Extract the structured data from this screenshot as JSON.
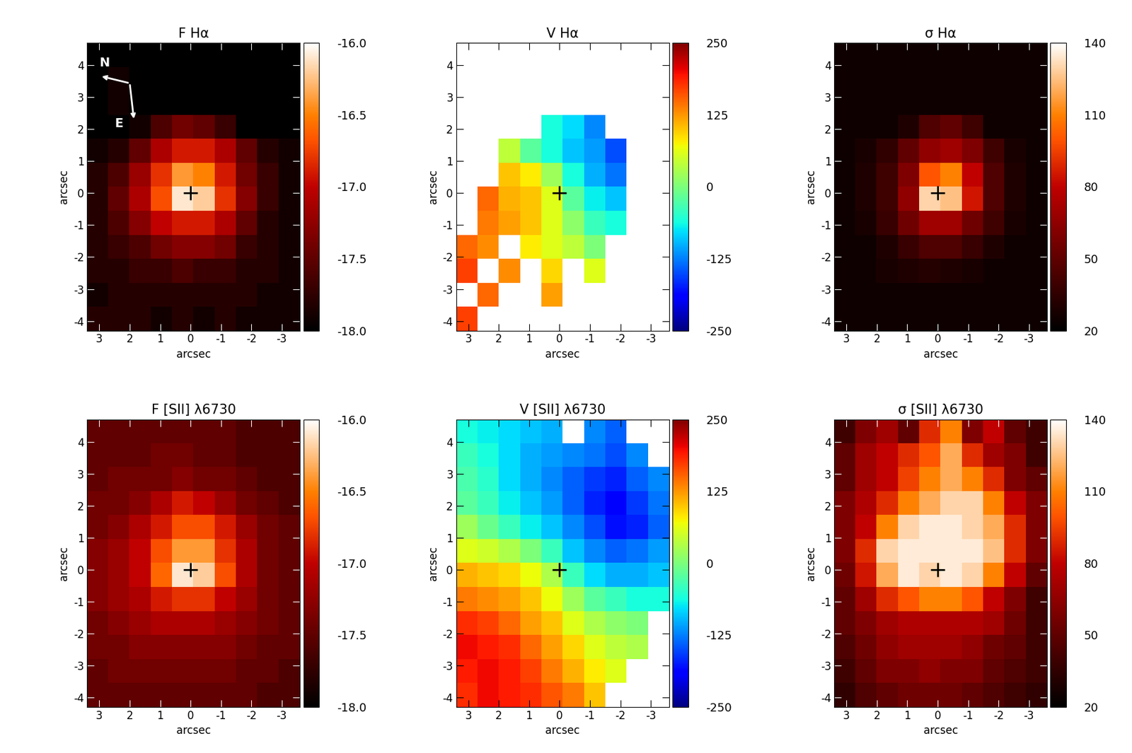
{
  "chart_data": [
    {
      "type": "heatmap",
      "title": "F Hα",
      "xlabel": "arcsec",
      "ylabel": "arcsec",
      "xlim": [
        3.4,
        -3.6
      ],
      "ylim": [
        -4.3,
        4.7
      ],
      "xticks": [
        3,
        2,
        1,
        0,
        -1,
        -2,
        -3
      ],
      "yticks": [
        -4,
        -3,
        -2,
        -1,
        0,
        1,
        2,
        3,
        4
      ],
      "color": "gist_heat",
      "marker": "+",
      "center": [
        0,
        0
      ],
      "annotations": [
        "N",
        "E"
      ],
      "colorbar": {
        "range": [
          -18.0,
          -16.0
        ],
        "ticks": [
          {
            "value": -18.0,
            "label": "-18.0"
          },
          -17.5,
          {
            "value": -17.0,
            "label": "-17.0"
          },
          -16.5,
          {
            "value": -16.0,
            "label": "-16.0"
          }
        ]
      },
      "cells": [
        [
          -18,
          -18,
          -18,
          -18,
          -18,
          -18,
          -18,
          -18,
          -18,
          -18
        ],
        [
          -18,
          -17.9,
          -18,
          -18,
          -18,
          -18,
          -18,
          -18,
          -18,
          -18
        ],
        [
          -18,
          -17.9,
          -18,
          -18,
          -18,
          -18,
          -18,
          -18,
          -18,
          -18
        ],
        [
          -18,
          -18,
          -17.9,
          -17.6,
          -17.4,
          -17.5,
          -17.7,
          -18,
          -18,
          -18
        ],
        [
          -17.9,
          -17.8,
          -17.5,
          -17.1,
          -16.9,
          -16.9,
          -17.1,
          -17.5,
          -17.8,
          -17.9
        ],
        [
          -17.8,
          -17.6,
          -17.2,
          -16.8,
          -16.4,
          -16.5,
          -16.9,
          -17.4,
          -17.7,
          -17.9
        ],
        [
          -17.8,
          -17.5,
          -17.1,
          -16.7,
          -16.1,
          -16.2,
          -16.8,
          -17.3,
          -17.7,
          -17.9
        ],
        [
          -17.8,
          -17.6,
          -17.3,
          -17.0,
          -16.9,
          -16.9,
          -17.1,
          -17.5,
          -17.8,
          -17.9
        ],
        [
          -17.8,
          -17.7,
          -17.6,
          -17.4,
          -17.3,
          -17.3,
          -17.4,
          -17.7,
          -17.8,
          -17.9
        ],
        [
          -17.8,
          -17.8,
          -17.7,
          -17.7,
          -17.6,
          -17.7,
          -17.7,
          -17.8,
          -17.8,
          -17.9
        ],
        [
          -17.9,
          -17.8,
          -17.8,
          -17.8,
          -17.8,
          -17.8,
          -17.8,
          -17.8,
          -17.9,
          -17.9
        ],
        [
          -17.8,
          -17.8,
          -17.8,
          -17.9,
          -17.8,
          -17.9,
          -17.8,
          -17.9,
          -17.9,
          -17.9
        ]
      ]
    },
    {
      "type": "heatmap",
      "title": "V Hα",
      "xlabel": "arcsec",
      "ylabel": "arcsec",
      "xlim": [
        3.4,
        -3.6
      ],
      "ylim": [
        -4.3,
        4.7
      ],
      "xticks": [
        3,
        2,
        1,
        0,
        -1,
        -2,
        -3
      ],
      "yticks": [
        -4,
        -3,
        -2,
        -1,
        0,
        1,
        2,
        3,
        4
      ],
      "color": "jet",
      "marker": "+",
      "center": [
        0,
        0
      ],
      "colorbar": {
        "range": [
          -250,
          250
        ],
        "ticks": [
          -250,
          -125,
          0,
          125,
          250
        ]
      },
      "cells": [
        [
          null,
          null,
          null,
          null,
          null,
          null,
          null,
          null,
          null,
          null
        ],
        [
          null,
          null,
          null,
          null,
          null,
          null,
          null,
          null,
          null,
          null
        ],
        [
          null,
          null,
          null,
          null,
          null,
          null,
          null,
          null,
          null,
          null
        ],
        [
          null,
          null,
          null,
          null,
          -60,
          -80,
          -120,
          null,
          null,
          null
        ],
        [
          null,
          null,
          40,
          -20,
          -60,
          -90,
          -110,
          -150,
          null,
          null
        ],
        [
          null,
          null,
          100,
          80,
          20,
          -60,
          -100,
          -130,
          null,
          null
        ],
        [
          null,
          150,
          110,
          100,
          60,
          -20,
          -70,
          -90,
          null,
          null
        ],
        [
          null,
          140,
          120,
          100,
          60,
          10,
          -40,
          -60,
          null,
          null
        ],
        [
          150,
          130,
          null,
          80,
          60,
          40,
          0,
          null,
          null,
          null
        ],
        [
          170,
          null,
          130,
          null,
          90,
          null,
          60,
          null,
          null,
          null
        ],
        [
          null,
          150,
          null,
          null,
          120,
          null,
          null,
          null,
          null,
          null
        ],
        [
          170,
          null,
          null,
          null,
          null,
          null,
          null,
          null,
          null,
          null
        ]
      ]
    },
    {
      "type": "heatmap",
      "title": "σ Hα",
      "xlabel": "arcsec",
      "ylabel": "arcsec",
      "xlim": [
        3.4,
        -3.6
      ],
      "ylim": [
        -4.3,
        4.7
      ],
      "xticks": [
        3,
        2,
        1,
        0,
        -1,
        -2,
        -3
      ],
      "yticks": [
        -4,
        -3,
        -2,
        -1,
        0,
        1,
        2,
        3,
        4
      ],
      "color": "gist_heat",
      "marker": "+",
      "center": [
        0,
        0
      ],
      "colorbar": {
        "range": [
          20,
          140
        ],
        "ticks": [
          20,
          50,
          80,
          110,
          140
        ]
      },
      "cells": [
        [
          25,
          25,
          25,
          25,
          25,
          25,
          25,
          25,
          25,
          25
        ],
        [
          25,
          25,
          25,
          25,
          25,
          25,
          25,
          25,
          25,
          25
        ],
        [
          25,
          25,
          25,
          25,
          25,
          25,
          25,
          25,
          25,
          25
        ],
        [
          25,
          25,
          25,
          30,
          45,
          50,
          40,
          25,
          25,
          25
        ],
        [
          25,
          28,
          35,
          50,
          65,
          70,
          60,
          40,
          28,
          25
        ],
        [
          25,
          30,
          40,
          60,
          100,
          110,
          80,
          45,
          30,
          25
        ],
        [
          25,
          30,
          40,
          65,
          130,
          125,
          85,
          45,
          30,
          25
        ],
        [
          25,
          28,
          38,
          55,
          70,
          70,
          55,
          40,
          28,
          25
        ],
        [
          25,
          25,
          30,
          38,
          45,
          45,
          38,
          30,
          25,
          25
        ],
        [
          25,
          25,
          28,
          30,
          32,
          30,
          28,
          25,
          25,
          25
        ],
        [
          25,
          25,
          25,
          25,
          25,
          25,
          25,
          25,
          25,
          25
        ],
        [
          25,
          25,
          25,
          25,
          25,
          25,
          25,
          25,
          25,
          25
        ]
      ]
    },
    {
      "type": "heatmap",
      "title": "F [SII] λ6730",
      "xlabel": "arcsec",
      "ylabel": "arcsec",
      "xlim": [
        3.4,
        -3.6
      ],
      "ylim": [
        -4.3,
        4.7
      ],
      "xticks": [
        3,
        2,
        1,
        0,
        -1,
        -2,
        -3
      ],
      "yticks": [
        -4,
        -3,
        -2,
        -1,
        0,
        1,
        2,
        3,
        4
      ],
      "color": "gist_heat",
      "marker": "+",
      "center": [
        0,
        0
      ],
      "colorbar": {
        "range": [
          -18.0,
          -16.0
        ],
        "ticks": [
          {
            "value": -18.0,
            "label": "-18.0"
          },
          -17.5,
          {
            "value": -17.0,
            "label": "-17.0"
          },
          -16.5,
          {
            "value": -16.0,
            "label": "-16.0"
          }
        ]
      },
      "cells": [
        [
          -17.5,
          -17.5,
          -17.5,
          -17.5,
          -17.5,
          -17.5,
          -17.5,
          -17.6,
          -17.6,
          -17.6
        ],
        [
          -17.5,
          -17.5,
          -17.5,
          -17.4,
          -17.4,
          -17.5,
          -17.5,
          -17.6,
          -17.6,
          -17.6
        ],
        [
          -17.5,
          -17.4,
          -17.4,
          -17.4,
          -17.3,
          -17.4,
          -17.4,
          -17.5,
          -17.6,
          -17.6
        ],
        [
          -17.4,
          -17.4,
          -17.3,
          -17.1,
          -16.9,
          -17.0,
          -17.2,
          -17.4,
          -17.5,
          -17.6
        ],
        [
          -17.4,
          -17.3,
          -17.1,
          -16.9,
          -16.7,
          -16.7,
          -16.9,
          -17.2,
          -17.4,
          -17.5
        ],
        [
          -17.3,
          -17.2,
          -17.0,
          -16.7,
          -16.4,
          -16.4,
          -16.8,
          -17.1,
          -17.4,
          -17.5
        ],
        [
          -17.3,
          -17.2,
          -17.0,
          -16.6,
          -16.1,
          -16.2,
          -16.7,
          -17.1,
          -17.4,
          -17.5
        ],
        [
          -17.3,
          -17.2,
          -17.1,
          -16.9,
          -16.8,
          -16.8,
          -17.0,
          -17.2,
          -17.4,
          -17.5
        ],
        [
          -17.4,
          -17.3,
          -17.2,
          -17.1,
          -17.1,
          -17.1,
          -17.2,
          -17.3,
          -17.4,
          -17.5
        ],
        [
          -17.4,
          -17.4,
          -17.3,
          -17.3,
          -17.3,
          -17.3,
          -17.3,
          -17.4,
          -17.5,
          -17.5
        ],
        [
          -17.5,
          -17.4,
          -17.4,
          -17.4,
          -17.4,
          -17.4,
          -17.4,
          -17.5,
          -17.5,
          -17.6
        ],
        [
          -17.5,
          -17.5,
          -17.5,
          -17.5,
          -17.5,
          -17.5,
          -17.5,
          -17.5,
          -17.6,
          -17.6
        ]
      ]
    },
    {
      "type": "heatmap",
      "title": "V [SII] λ6730",
      "xlabel": "arcsec",
      "ylabel": "arcsec",
      "xlim": [
        3.4,
        -3.6
      ],
      "ylim": [
        -4.3,
        4.7
      ],
      "xticks": [
        3,
        2,
        1,
        0,
        -1,
        -2,
        -3
      ],
      "yticks": [
        -4,
        -3,
        -2,
        -1,
        0,
        1,
        2,
        3,
        4
      ],
      "color": "jet",
      "marker": "+",
      "center": [
        0,
        0
      ],
      "colorbar": {
        "range": [
          -250,
          250
        ],
        "ticks": [
          -250,
          -125,
          0,
          125,
          250
        ]
      },
      "cells": [
        [
          -60,
          -70,
          -80,
          -90,
          -100,
          null,
          -120,
          -140,
          null,
          null
        ],
        [
          -40,
          -60,
          -80,
          -100,
          -110,
          -120,
          -130,
          -150,
          -120,
          null
        ],
        [
          -30,
          -50,
          -80,
          -100,
          -120,
          -140,
          -160,
          -170,
          -140,
          -120
        ],
        [
          -20,
          -40,
          -70,
          -90,
          -110,
          -140,
          -170,
          -190,
          -160,
          -130
        ],
        [
          20,
          -10,
          -40,
          -70,
          -90,
          -120,
          -150,
          -180,
          -170,
          -140
        ],
        [
          60,
          50,
          30,
          0,
          -40,
          -90,
          -120,
          -140,
          -130,
          -110
        ],
        [
          110,
          100,
          90,
          70,
          30,
          -40,
          -80,
          -100,
          -100,
          -90
        ],
        [
          140,
          130,
          120,
          100,
          70,
          20,
          -20,
          -40,
          -60,
          -60
        ],
        [
          180,
          170,
          150,
          120,
          100,
          60,
          30,
          10,
          0,
          null
        ],
        [
          200,
          190,
          180,
          150,
          120,
          90,
          60,
          40,
          30,
          null
        ],
        [
          190,
          200,
          190,
          170,
          140,
          110,
          80,
          60,
          null,
          null
        ],
        [
          180,
          200,
          190,
          180,
          160,
          140,
          100,
          null,
          null,
          null
        ]
      ]
    },
    {
      "type": "heatmap",
      "title": "σ [SII] λ6730",
      "xlabel": "arcsec",
      "ylabel": "arcsec",
      "xlim": [
        3.4,
        -3.6
      ],
      "ylim": [
        -4.3,
        4.7
      ],
      "xticks": [
        3,
        2,
        1,
        0,
        -1,
        -2,
        -3
      ],
      "yticks": [
        -4,
        -3,
        -2,
        -1,
        0,
        1,
        2,
        3,
        4
      ],
      "color": "gist_heat",
      "marker": "+",
      "center": [
        0,
        0
      ],
      "colorbar": {
        "range": [
          20,
          140
        ],
        "ticks": [
          20,
          50,
          80,
          110,
          140
        ]
      },
      "cells": [
        [
          40,
          60,
          70,
          50,
          90,
          110,
          60,
          80,
          50,
          40
        ],
        [
          50,
          70,
          80,
          90,
          100,
          120,
          90,
          70,
          60,
          40
        ],
        [
          50,
          70,
          80,
          95,
          110,
          120,
          110,
          90,
          60,
          50
        ],
        [
          60,
          75,
          90,
          110,
          120,
          130,
          130,
          110,
          80,
          60
        ],
        [
          60,
          80,
          110,
          130,
          135,
          135,
          130,
          120,
          90,
          60
        ],
        [
          60,
          90,
          130,
          135,
          135,
          135,
          135,
          125,
          90,
          60
        ],
        [
          55,
          85,
          120,
          135,
          130,
          135,
          130,
          110,
          80,
          50
        ],
        [
          50,
          70,
          90,
          100,
          110,
          110,
          100,
          80,
          60,
          40
        ],
        [
          50,
          60,
          70,
          75,
          75,
          75,
          75,
          70,
          55,
          40
        ],
        [
          45,
          55,
          65,
          70,
          70,
          70,
          65,
          55,
          50,
          40
        ],
        [
          40,
          50,
          60,
          60,
          65,
          60,
          60,
          50,
          45,
          40
        ],
        [
          35,
          45,
          50,
          55,
          55,
          55,
          50,
          45,
          40,
          35
        ]
      ]
    }
  ]
}
